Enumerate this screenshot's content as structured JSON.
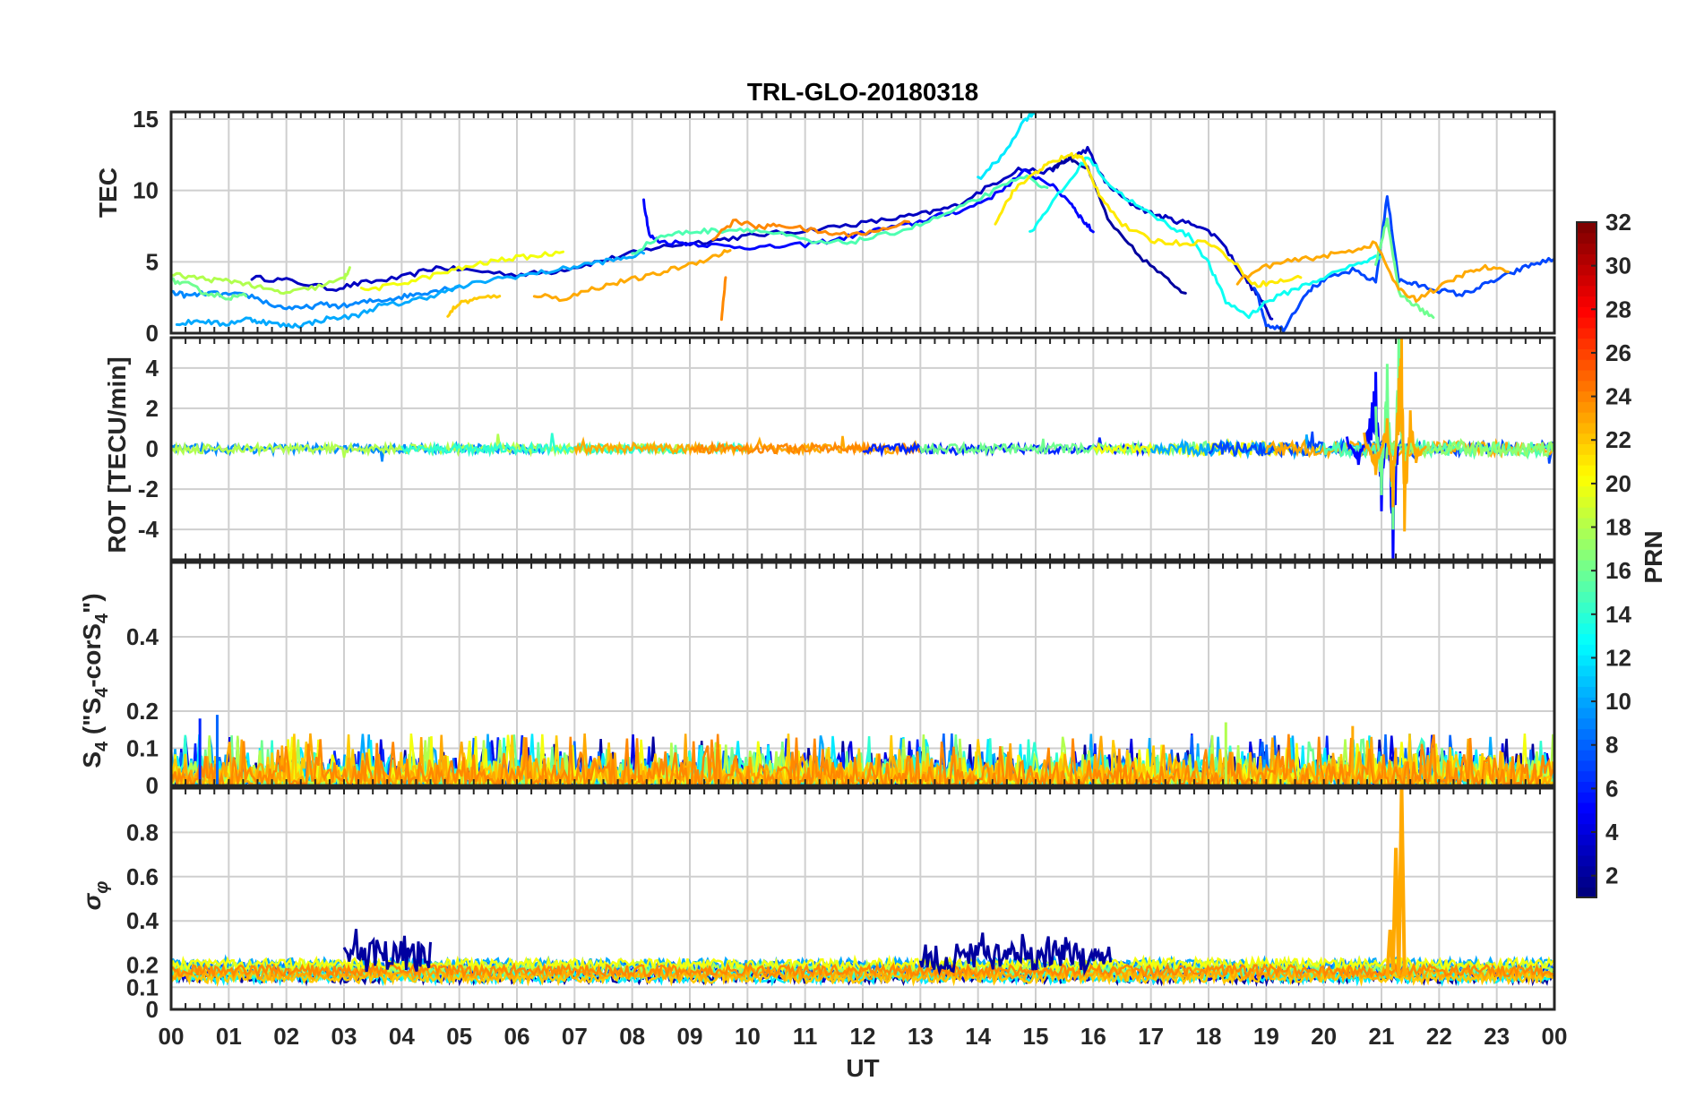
{
  "chart_data": [
    {
      "type": "line",
      "title": "TRL-GLO-20180318",
      "panel": "tec",
      "ylabel": "TEC",
      "ylim": [
        0,
        15.5
      ],
      "yticks": [
        0,
        5,
        10,
        15
      ],
      "ytick_labels": [
        "0",
        "5",
        "10",
        "15"
      ],
      "xlabel": "UT",
      "xlim": [
        0,
        24
      ],
      "series": [
        {
          "name": "PRN 3",
          "prn": 3,
          "x": [
            1.4,
            2.0,
            2.8,
            3.3,
            4.0,
            4.6,
            5.2,
            6.0,
            6.6,
            7.2,
            7.8,
            8.4,
            9.0,
            9.6,
            10.2,
            11.0,
            11.8,
            12.5,
            13.1,
            13.6,
            14.2,
            14.7,
            15.2,
            15.6,
            15.9,
            16.2,
            16.6,
            17.0,
            17.4,
            17.8,
            18.2,
            18.6,
            18.9,
            19.1
          ],
          "y": [
            3.9,
            3.7,
            3.1,
            3.5,
            3.9,
            4.6,
            4.4,
            4.1,
            4.3,
            4.8,
            5.4,
            6.0,
            6.3,
            6.6,
            6.9,
            7.2,
            7.6,
            8.0,
            8.4,
            8.9,
            10.3,
            11.5,
            11.3,
            12.2,
            12.9,
            10.6,
            9.2,
            8.4,
            7.9,
            7.6,
            6.6,
            4.0,
            2.4,
            1.0
          ]
        },
        {
          "name": "PRN 5",
          "prn": 5,
          "x": [
            8.2,
            8.3,
            8.5,
            9.0,
            9.6,
            10.3,
            11.0,
            11.6,
            12.2,
            12.8,
            13.3,
            13.8,
            14.3,
            14.8,
            15.2,
            15.6,
            15.8,
            16.0
          ],
          "y": [
            9.3,
            6.8,
            6.4,
            6.3,
            6.1,
            6.0,
            6.2,
            6.6,
            7.2,
            7.6,
            8.2,
            8.7,
            9.7,
            11.3,
            10.6,
            9.2,
            8.0,
            7.1
          ]
        },
        {
          "name": "PRN 2",
          "prn": 2,
          "x": [
            15.3,
            15.6,
            15.9,
            16.3,
            16.8,
            17.3,
            17.6
          ],
          "y": [
            11.6,
            12.3,
            11.5,
            7.6,
            5.4,
            3.7,
            2.8
          ]
        },
        {
          "name": "PRN 7",
          "prn": 7,
          "x": [
            18.8,
            19.0,
            19.3,
            19.7,
            20.0,
            20.5,
            20.9,
            21.1,
            21.3,
            21.6,
            22.0,
            22.4,
            22.8,
            23.2,
            23.6,
            24.0
          ],
          "y": [
            3.3,
            0.6,
            0.3,
            2.9,
            3.7,
            4.4,
            3.6,
            9.6,
            3.7,
            3.4,
            3.0,
            2.7,
            3.4,
            4.1,
            4.8,
            5.2
          ]
        },
        {
          "name": "PRN 9",
          "prn": 9,
          "x": [
            0.0,
            0.3,
            0.6,
            1.0,
            1.4,
            1.8,
            2.2,
            2.6,
            3.0,
            3.4,
            3.8,
            4.2,
            4.6,
            5.0
          ],
          "y": [
            2.9,
            2.6,
            2.8,
            2.7,
            2.6,
            1.9,
            1.7,
            2.0,
            1.9,
            2.2,
            2.4,
            2.7,
            3.0,
            3.3
          ]
        },
        {
          "name": "PRN 10",
          "prn": 10,
          "x": [
            0.1,
            0.5,
            0.9,
            1.3,
            1.6,
            2.0,
            2.3,
            2.7,
            3.2,
            3.6,
            4.0,
            4.5,
            5.0,
            5.6,
            6.2,
            6.8,
            7.3,
            7.8,
            8.2
          ],
          "y": [
            0.6,
            0.9,
            0.6,
            1.0,
            0.8,
            0.5,
            0.6,
            1.0,
            1.2,
            1.9,
            2.1,
            2.6,
            3.2,
            3.8,
            4.1,
            4.5,
            4.9,
            5.2,
            5.6
          ]
        },
        {
          "name": "PRN 12",
          "prn": 12,
          "x": [
            14.0,
            14.4,
            14.8,
            15.0
          ],
          "y": [
            10.8,
            12.3,
            14.9,
            15.6
          ]
        },
        {
          "name": "PRN 13",
          "prn": 13,
          "x": [
            14.9,
            15.2,
            15.6,
            15.9,
            16.3,
            16.8,
            17.3,
            17.7,
            18.0,
            18.3,
            18.7,
            19.0,
            19.5,
            20.0,
            20.6,
            21.0
          ],
          "y": [
            7.0,
            8.7,
            10.7,
            12.4,
            10.3,
            8.8,
            7.6,
            6.7,
            4.9,
            2.2,
            1.2,
            2.2,
            3.1,
            3.9,
            4.9,
            5.4
          ]
        },
        {
          "name": "PRN 15",
          "prn": 15,
          "x": [
            8.0,
            8.5,
            9.0,
            9.5,
            10.0,
            10.6,
            11.2,
            11.8,
            12.4,
            13.0,
            13.6,
            14.2,
            14.8,
            15.2
          ],
          "y": [
            5.6,
            6.8,
            7.1,
            7.2,
            7.3,
            6.9,
            6.3,
            6.4,
            6.9,
            7.6,
            8.6,
            9.8,
            11.0,
            10.2
          ]
        },
        {
          "name": "PRN 16",
          "prn": 16,
          "x": [
            0.0,
            0.3,
            0.6,
            1.0,
            1.3,
            20.9,
            21.1,
            21.3,
            21.6,
            21.9
          ],
          "y": [
            3.7,
            3.4,
            2.8,
            2.5,
            2.6,
            4.9,
            8.1,
            2.8,
            1.9,
            1.1
          ]
        },
        {
          "name": "PRN 18",
          "prn": 18,
          "x": [
            0.0,
            0.4,
            0.8,
            1.2,
            1.6,
            2.0,
            2.5,
            3.0,
            3.1
          ],
          "y": [
            4.1,
            3.9,
            3.7,
            3.6,
            3.1,
            2.8,
            3.2,
            3.8,
            4.6
          ]
        },
        {
          "name": "PRN 20",
          "prn": 20,
          "x": [
            3.3,
            3.8,
            4.3,
            4.8,
            5.3,
            5.8,
            6.3,
            6.8
          ],
          "y": [
            3.0,
            3.3,
            3.8,
            4.3,
            4.8,
            5.2,
            5.4,
            5.7
          ]
        },
        {
          "name": "PRN 21",
          "prn": 21,
          "x": [
            14.3,
            14.6,
            15.0,
            15.3,
            15.6,
            15.8,
            16.1,
            16.5,
            17.0,
            17.5,
            18.0,
            18.4,
            18.8,
            19.2,
            19.6
          ],
          "y": [
            7.8,
            9.9,
            11.3,
            12.0,
            12.5,
            12.3,
            9.8,
            7.6,
            6.5,
            6.3,
            6.4,
            5.1,
            3.4,
            3.6,
            3.9
          ]
        },
        {
          "name": "PRN 22",
          "prn": 22,
          "x": [
            4.8,
            5.0,
            5.3,
            5.7
          ],
          "y": [
            1.3,
            2.1,
            2.4,
            2.6
          ]
        },
        {
          "name": "PRN 23",
          "prn": 23,
          "x": [
            6.3,
            6.8,
            7.3,
            7.8,
            8.3,
            8.8,
            9.3,
            9.7,
            18.5,
            19.0,
            19.5,
            20.0,
            20.5,
            20.9,
            21.3,
            21.6,
            22.0,
            22.4,
            22.8,
            23.2
          ],
          "y": [
            2.7,
            2.4,
            3.1,
            3.6,
            4.0,
            4.6,
            5.2,
            5.8,
            3.6,
            4.7,
            5.1,
            5.4,
            5.8,
            6.3,
            3.0,
            2.4,
            3.2,
            4.1,
            4.6,
            4.3
          ]
        },
        {
          "name": "PRN 24",
          "prn": 24,
          "x": [
            9.4,
            9.8,
            10.2,
            10.6,
            11.1,
            11.6,
            12.2,
            12.8,
            9.55,
            9.62
          ],
          "y": [
            6.7,
            7.9,
            7.4,
            7.6,
            7.2,
            6.9,
            7.1,
            7.8,
            1.1,
            3.9
          ]
        }
      ]
    },
    {
      "type": "line",
      "panel": "rot",
      "ylabel": "ROT [TECU/min]",
      "ylim": [
        -5.5,
        5.5
      ],
      "yticks": [
        -4,
        -2,
        0,
        2,
        4
      ],
      "ytick_labels": [
        "-4",
        "-2",
        "0",
        "2",
        "4"
      ],
      "series": [
        {
          "name": "PRN 5",
          "prn": 5,
          "x": [
            20.4,
            20.6,
            20.8,
            20.9,
            21.0,
            21.1,
            21.2,
            21.3
          ],
          "y": [
            0.6,
            -0.8,
            1.5,
            3.8,
            -3.1,
            2.9,
            -5.7,
            1.2
          ]
        },
        {
          "name": "PRN 16",
          "prn": 16,
          "x": [
            20.9,
            21.0,
            21.1,
            21.2,
            21.3,
            21.4,
            21.5
          ],
          "y": [
            2.1,
            -2.3,
            4.2,
            -4.0,
            5.5,
            -1.8,
            0.9
          ]
        },
        {
          "name": "PRN 23",
          "prn": 23,
          "x": [
            20.7,
            20.9,
            21.1,
            21.2,
            21.3,
            21.35,
            21.4,
            21.5,
            21.6,
            21.8
          ],
          "y": [
            0.8,
            -1.3,
            1.5,
            -2.9,
            3.5,
            5.5,
            -4.1,
            1.9,
            -0.7,
            0.3
          ]
        }
      ],
      "note": "All other PRNs fluctuate within about +/-0.6 TECU/min around 0"
    },
    {
      "type": "line",
      "panel": "s4",
      "ylabel": "S4 (\"S4-corS4\")",
      "ylim": [
        0,
        0.6
      ],
      "yticks": [
        0,
        0.1,
        0.2,
        0.4
      ],
      "ytick_labels": [
        "0",
        "0.1",
        "0.2",
        "0.4"
      ],
      "typical_range": [
        0,
        0.1
      ],
      "peaks": [
        {
          "x": 0.8,
          "y": 0.19,
          "prn": 8
        },
        {
          "x": 0.5,
          "y": 0.18,
          "prn": 6
        },
        {
          "x": 18.3,
          "y": 0.17,
          "prn": 18
        },
        {
          "x": 20.5,
          "y": 0.16,
          "prn": 23
        }
      ]
    },
    {
      "type": "line",
      "panel": "sigma_phi",
      "ylabel": "σφ",
      "ylim": [
        0,
        1.0
      ],
      "yticks": [
        0,
        0.1,
        0.2,
        0.4,
        0.6,
        0.8
      ],
      "ytick_labels": [
        "0",
        "0.1",
        "0.2",
        "0.4",
        "0.6",
        "0.8"
      ],
      "typical_range": [
        0.12,
        0.2
      ],
      "enhanced_intervals": [
        {
          "x_start": 3.0,
          "x_end": 4.5,
          "level": 0.27,
          "prn": 2
        },
        {
          "x_start": 13.0,
          "x_end": 16.3,
          "level": 0.25,
          "prn": 2
        },
        {
          "x_start": 21.1,
          "x_end": 21.45,
          "level": 1.0,
          "prn": 23
        }
      ]
    }
  ],
  "x_axis": {
    "label": "UT",
    "ticks": [
      0,
      1,
      2,
      3,
      4,
      5,
      6,
      7,
      8,
      9,
      10,
      11,
      12,
      13,
      14,
      15,
      16,
      17,
      18,
      19,
      20,
      21,
      22,
      23,
      24
    ],
    "tick_labels": [
      "00",
      "01",
      "02",
      "03",
      "04",
      "05",
      "06",
      "07",
      "08",
      "09",
      "10",
      "11",
      "12",
      "13",
      "14",
      "15",
      "16",
      "17",
      "18",
      "19",
      "20",
      "21",
      "22",
      "23",
      "00"
    ]
  },
  "colorbar": {
    "label": "PRN",
    "range": [
      1,
      32
    ],
    "ticks": [
      2,
      4,
      6,
      8,
      10,
      12,
      14,
      16,
      18,
      20,
      22,
      24,
      26,
      28,
      30,
      32
    ],
    "tick_labels": [
      "2",
      "4",
      "6",
      "8",
      "10",
      "12",
      "14",
      "16",
      "18",
      "20",
      "22",
      "24",
      "26",
      "28",
      "30",
      "32"
    ],
    "colormap": "jet"
  }
}
